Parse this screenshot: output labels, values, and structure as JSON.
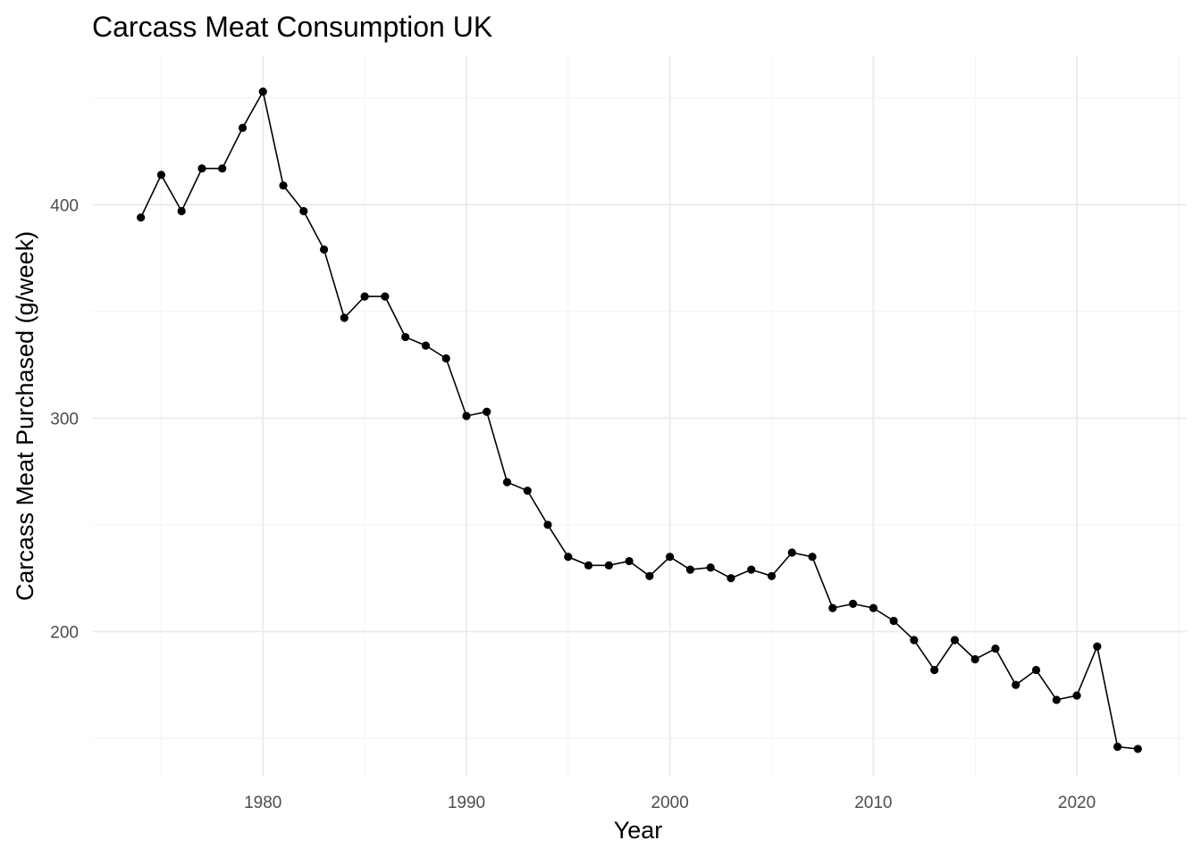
{
  "chart_data": {
    "type": "line",
    "title": "Carcass Meat Consumption UK",
    "xlabel": "Year",
    "ylabel": "Carcass Meat Purchased (g/week)",
    "xlim": [
      1971.6,
      2025.4
    ],
    "ylim": [
      132,
      470
    ],
    "x_ticks": [
      1980,
      1990,
      2000,
      2010,
      2020
    ],
    "x_minor_ticks": [
      1975,
      1985,
      1995,
      2005,
      2015,
      2025
    ],
    "y_ticks": [
      200,
      300,
      400
    ],
    "y_minor_ticks": [
      150,
      250,
      350,
      450
    ],
    "grid": true,
    "legend": "none",
    "x": [
      1974,
      1975,
      1976,
      1977,
      1978,
      1979,
      1980,
      1981,
      1982,
      1983,
      1984,
      1985,
      1986,
      1987,
      1988,
      1989,
      1990,
      1991,
      1992,
      1993,
      1994,
      1995,
      1996,
      1997,
      1998,
      1999,
      2000,
      2001,
      2002,
      2003,
      2004,
      2005,
      2006,
      2007,
      2008,
      2009,
      2010,
      2011,
      2012,
      2013,
      2014,
      2015,
      2016,
      2017,
      2018,
      2019,
      2020,
      2021,
      2022,
      2023
    ],
    "y": [
      394,
      414,
      397,
      417,
      417,
      436,
      453,
      409,
      397,
      379,
      347,
      357,
      357,
      338,
      334,
      328,
      301,
      303,
      270,
      266,
      250,
      235,
      231,
      231,
      233,
      226,
      235,
      229,
      230,
      225,
      229,
      226,
      237,
      235,
      211,
      213,
      211,
      205,
      196,
      182,
      196,
      187,
      192,
      175,
      182,
      168,
      170,
      193,
      146,
      145
    ]
  }
}
